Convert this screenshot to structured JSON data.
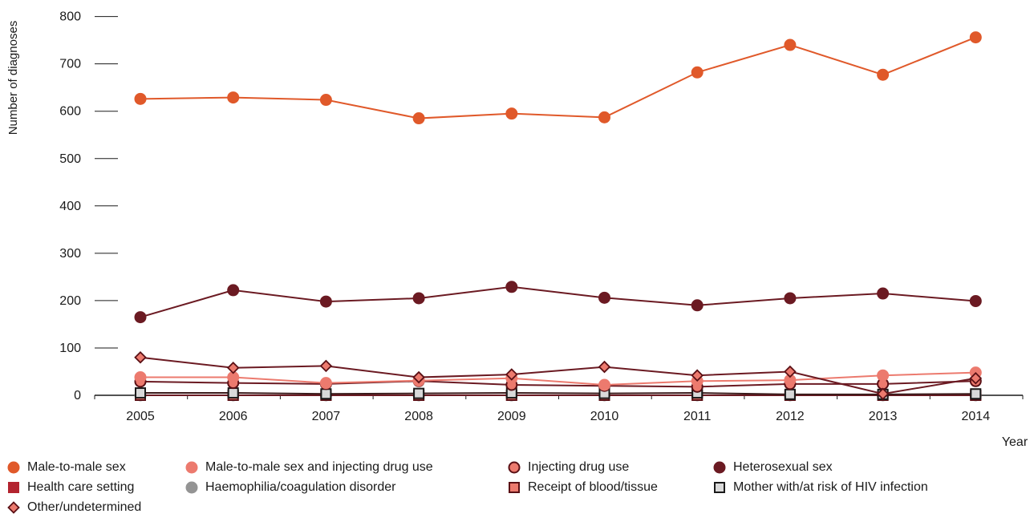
{
  "chart_data": {
    "type": "line",
    "ylabel": "Number of diagnoses",
    "xlabel": "Year",
    "ylim": [
      0,
      800
    ],
    "yticks": [
      0,
      100,
      200,
      300,
      400,
      500,
      600,
      700,
      800
    ],
    "categories": [
      "2005",
      "2006",
      "2007",
      "2008",
      "2009",
      "2010",
      "2011",
      "2012",
      "2013",
      "2014"
    ],
    "series": [
      {
        "name": "Male-to-male sex",
        "marker": "circle",
        "color": "#e0592a",
        "line": "#e0592a",
        "stroke": "#e0592a",
        "values": [
          626,
          629,
          624,
          585,
          595,
          587,
          682,
          740,
          677,
          756
        ]
      },
      {
        "name": "Male-to-male sex and injecting drug use",
        "marker": "circle",
        "color": "#ec7a6e",
        "line": "#ec7a6e",
        "stroke": "#ec7a6e",
        "values": [
          38,
          38,
          26,
          31,
          36,
          22,
          30,
          32,
          42,
          48
        ]
      },
      {
        "name": "Injecting drug use",
        "marker": "circle",
        "color": "#ec7a6e",
        "line": "#6b1a22",
        "stroke": "#5a1015",
        "values": [
          29,
          26,
          24,
          30,
          22,
          20,
          18,
          24,
          24,
          30
        ]
      },
      {
        "name": "Heterosexual sex",
        "marker": "circle",
        "color": "#6b1a22",
        "line": "#6b1a22",
        "stroke": "#6b1a22",
        "values": [
          165,
          222,
          198,
          205,
          229,
          206,
          190,
          205,
          215,
          199
        ]
      },
      {
        "name": "Health care setting",
        "marker": "square",
        "color": "#b3242f",
        "line": "#b3242f",
        "stroke": "#b3242f",
        "values": [
          0,
          0,
          0,
          0,
          0,
          0,
          0,
          0,
          0,
          0
        ]
      },
      {
        "name": "Haemophilia/coagulation disorder",
        "marker": "circle",
        "color": "#949494",
        "line": "#949494",
        "stroke": "#949494",
        "values": [
          0,
          0,
          0,
          0,
          0,
          0,
          0,
          0,
          0,
          0
        ]
      },
      {
        "name": "Receipt of blood/tissue",
        "marker": "square",
        "color": "#ec7a6e",
        "line": "#6b1a22",
        "stroke": "#5a1015",
        "values": [
          0,
          0,
          0,
          0,
          0,
          0,
          0,
          0,
          0,
          0
        ]
      },
      {
        "name": "Mother with/at risk of HIV infection",
        "marker": "square",
        "color": "#d9d9d9",
        "line": "#3a1a1a",
        "stroke": "#1a1a1a",
        "values": [
          5,
          5,
          3,
          4,
          5,
          4,
          5,
          2,
          2,
          3
        ]
      },
      {
        "name": "Other/undetermined",
        "marker": "diamond",
        "color": "#ec7a6e",
        "line": "#6b1a22",
        "stroke": "#5a1015",
        "values": [
          80,
          58,
          62,
          38,
          44,
          60,
          42,
          50,
          3,
          36
        ]
      }
    ]
  }
}
